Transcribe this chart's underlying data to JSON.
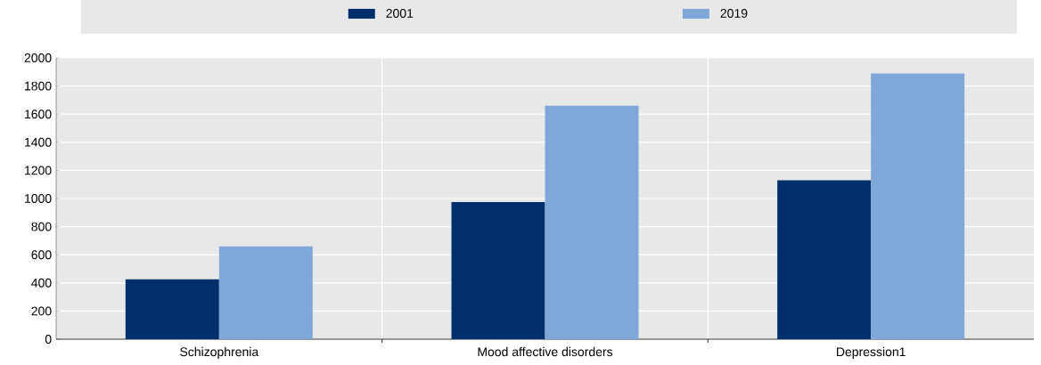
{
  "chart_data": {
    "type": "bar",
    "categories": [
      "Schizophrenia",
      "Mood affective disorders",
      "Depression1"
    ],
    "series": [
      {
        "name": "2001",
        "color": "#002f6c",
        "values": [
          425,
          975,
          1130
        ]
      },
      {
        "name": "2019",
        "color": "#7fa8d9",
        "values": [
          660,
          1660,
          1890
        ]
      }
    ],
    "ylim": [
      0,
      2000
    ],
    "yticks": [
      0,
      200,
      400,
      600,
      800,
      1000,
      1200,
      1400,
      1600,
      1800,
      2000
    ],
    "grid": true,
    "legend": "top"
  }
}
